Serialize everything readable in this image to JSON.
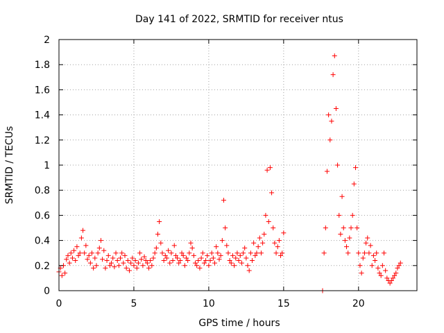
{
  "chart_data": {
    "type": "scatter",
    "title": "Day 141 of 2022, SRMTID for receiver ntus",
    "xlabel": "GPS time / hours",
    "ylabel": "SRMTID / TECUs",
    "xlim": [
      0,
      23.9
    ],
    "ylim": [
      0,
      2
    ],
    "xticks": [
      0,
      5,
      10,
      15,
      20
    ],
    "xtick_labels": [
      "0",
      "5",
      "10",
      "15",
      "20"
    ],
    "yticks": [
      0,
      0.2,
      0.4,
      0.6,
      0.8,
      1,
      1.2,
      1.4,
      1.6,
      1.8,
      2
    ],
    "ytick_labels": [
      "0",
      "0.2",
      "0.4",
      "0.6",
      "0.8",
      "1",
      "1.2",
      "1.4",
      "1.6",
      "1.8",
      "2"
    ],
    "grid": true,
    "marker": "plus",
    "color": "#ff0000",
    "series": [
      {
        "name": "SRMTID",
        "x": [
          0.0,
          0.1,
          0.2,
          0.3,
          0.4,
          0.5,
          0.6,
          0.7,
          0.8,
          0.9,
          1.0,
          1.1,
          1.2,
          1.3,
          1.4,
          1.5,
          1.6,
          1.7,
          1.8,
          1.9,
          2.0,
          2.1,
          2.2,
          2.3,
          2.4,
          2.5,
          2.6,
          2.7,
          2.8,
          2.9,
          3.0,
          3.1,
          3.2,
          3.3,
          3.4,
          3.5,
          3.6,
          3.7,
          3.8,
          3.9,
          4.0,
          4.1,
          4.2,
          4.3,
          4.4,
          4.5,
          4.6,
          4.7,
          4.8,
          4.9,
          5.0,
          5.1,
          5.2,
          5.3,
          5.4,
          5.5,
          5.6,
          5.7,
          5.8,
          5.9,
          6.0,
          6.1,
          6.2,
          6.3,
          6.4,
          6.5,
          6.6,
          6.7,
          6.8,
          6.9,
          7.0,
          7.1,
          7.2,
          7.3,
          7.4,
          7.5,
          7.6,
          7.7,
          7.8,
          7.9,
          8.0,
          8.1,
          8.2,
          8.3,
          8.4,
          8.5,
          8.6,
          8.7,
          8.8,
          8.9,
          9.0,
          9.1,
          9.2,
          9.3,
          9.4,
          9.5,
          9.6,
          9.7,
          9.8,
          9.9,
          10.0,
          10.1,
          10.2,
          10.3,
          10.4,
          10.5,
          10.6,
          10.7,
          10.8,
          10.9,
          11.0,
          11.1,
          11.2,
          11.3,
          11.4,
          11.5,
          11.6,
          11.7,
          11.8,
          11.9,
          12.0,
          12.1,
          12.2,
          12.3,
          12.4,
          12.5,
          12.6,
          12.7,
          12.8,
          12.9,
          13.0,
          13.1,
          13.2,
          13.3,
          13.4,
          13.5,
          13.6,
          13.7,
          13.8,
          13.9,
          14.0,
          14.1,
          14.2,
          14.3,
          14.4,
          14.5,
          14.6,
          14.7,
          14.8,
          14.9,
          15.0,
          17.6,
          17.7,
          17.8,
          17.9,
          18.0,
          18.1,
          18.2,
          18.3,
          18.4,
          18.5,
          18.6,
          18.7,
          18.8,
          18.9,
          19.0,
          19.1,
          19.2,
          19.3,
          19.4,
          19.5,
          19.6,
          19.7,
          19.8,
          19.9,
          20.0,
          20.1,
          20.2,
          20.3,
          20.4,
          20.5,
          20.6,
          20.7,
          20.8,
          20.9,
          21.0,
          21.1,
          21.2,
          21.3,
          21.4,
          21.5,
          21.6,
          21.7,
          21.8,
          21.9,
          22.0,
          22.1,
          22.2,
          22.3,
          22.4,
          22.5,
          22.6,
          22.7,
          22.8
        ],
        "y": [
          0.15,
          0.18,
          0.12,
          0.2,
          0.14,
          0.25,
          0.28,
          0.22,
          0.3,
          0.26,
          0.32,
          0.24,
          0.35,
          0.28,
          0.3,
          0.42,
          0.48,
          0.3,
          0.36,
          0.25,
          0.28,
          0.22,
          0.3,
          0.18,
          0.26,
          0.2,
          0.3,
          0.34,
          0.4,
          0.25,
          0.32,
          0.18,
          0.24,
          0.28,
          0.2,
          0.22,
          0.26,
          0.19,
          0.3,
          0.24,
          0.2,
          0.26,
          0.3,
          0.22,
          0.28,
          0.18,
          0.24,
          0.16,
          0.22,
          0.26,
          0.2,
          0.24,
          0.18,
          0.22,
          0.3,
          0.25,
          0.2,
          0.27,
          0.24,
          0.22,
          0.18,
          0.24,
          0.2,
          0.26,
          0.3,
          0.34,
          0.45,
          0.55,
          0.38,
          0.3,
          0.24,
          0.28,
          0.26,
          0.32,
          0.22,
          0.3,
          0.24,
          0.36,
          0.28,
          0.26,
          0.22,
          0.24,
          0.3,
          0.28,
          0.2,
          0.26,
          0.24,
          0.3,
          0.38,
          0.34,
          0.28,
          0.22,
          0.2,
          0.24,
          0.18,
          0.26,
          0.3,
          0.22,
          0.24,
          0.28,
          0.2,
          0.24,
          0.3,
          0.26,
          0.22,
          0.35,
          0.3,
          0.25,
          0.28,
          0.4,
          0.72,
          0.5,
          0.36,
          0.3,
          0.24,
          0.22,
          0.28,
          0.2,
          0.26,
          0.3,
          0.24,
          0.28,
          0.22,
          0.3,
          0.34,
          0.26,
          0.2,
          0.16,
          0.3,
          0.24,
          0.38,
          0.28,
          0.3,
          0.35,
          0.42,
          0.3,
          0.38,
          0.45,
          0.6,
          0.96,
          0.55,
          0.98,
          0.78,
          0.5,
          0.38,
          0.3,
          0.35,
          0.4,
          0.28,
          0.3,
          0.46,
          0.0,
          0.3,
          0.5,
          0.95,
          1.4,
          1.2,
          1.35,
          1.72,
          1.87,
          1.45,
          1.0,
          0.6,
          0.45,
          0.75,
          0.5,
          0.4,
          0.35,
          0.3,
          0.42,
          0.5,
          0.6,
          0.85,
          0.98,
          0.5,
          0.3,
          0.2,
          0.14,
          0.26,
          0.3,
          0.38,
          0.42,
          0.3,
          0.36,
          0.2,
          0.28,
          0.24,
          0.3,
          0.18,
          0.14,
          0.12,
          0.2,
          0.3,
          0.16,
          0.1,
          0.08,
          0.06,
          0.08,
          0.1,
          0.12,
          0.14,
          0.18,
          0.2,
          0.22
        ]
      }
    ]
  }
}
